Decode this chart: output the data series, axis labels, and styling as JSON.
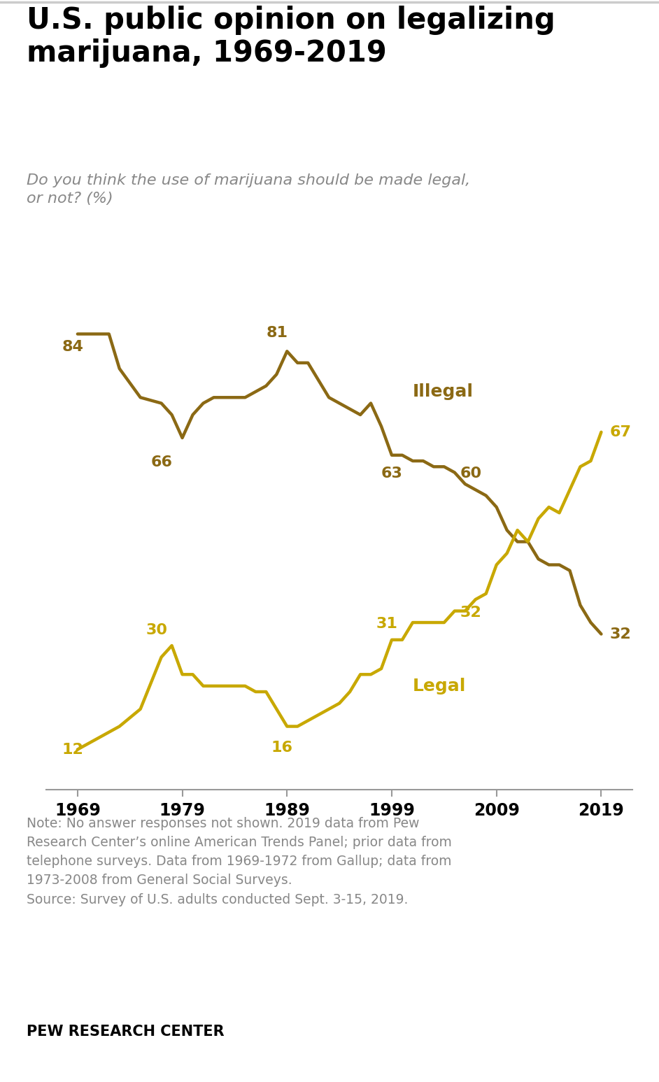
{
  "title": "U.S. public opinion on legalizing\nmarijuana, 1969-2019",
  "subtitle": "Do you think the use of marijuana should be made legal,\nor not? (%)",
  "illegal_data": [
    [
      1969,
      84
    ],
    [
      1972,
      84
    ],
    [
      1973,
      78
    ],
    [
      1975,
      73
    ],
    [
      1977,
      72
    ],
    [
      1978,
      70
    ],
    [
      1979,
      66
    ],
    [
      1980,
      70
    ],
    [
      1981,
      72
    ],
    [
      1982,
      73
    ],
    [
      1983,
      73
    ],
    [
      1984,
      73
    ],
    [
      1985,
      73
    ],
    [
      1986,
      74
    ],
    [
      1987,
      75
    ],
    [
      1988,
      77
    ],
    [
      1989,
      81
    ],
    [
      1990,
      79
    ],
    [
      1991,
      79
    ],
    [
      1993,
      73
    ],
    [
      1994,
      72
    ],
    [
      1995,
      71
    ],
    [
      1996,
      70
    ],
    [
      1997,
      72
    ],
    [
      1998,
      68
    ],
    [
      1999,
      63
    ],
    [
      2000,
      63
    ],
    [
      2001,
      62
    ],
    [
      2002,
      62
    ],
    [
      2003,
      61
    ],
    [
      2004,
      61
    ],
    [
      2005,
      60
    ],
    [
      2006,
      58
    ],
    [
      2007,
      57
    ],
    [
      2008,
      56
    ],
    [
      2009,
      54
    ],
    [
      2010,
      50
    ],
    [
      2011,
      48
    ],
    [
      2012,
      48
    ],
    [
      2013,
      45
    ],
    [
      2014,
      44
    ],
    [
      2015,
      44
    ],
    [
      2016,
      43
    ],
    [
      2017,
      37
    ],
    [
      2018,
      34
    ],
    [
      2019,
      32
    ]
  ],
  "legal_data": [
    [
      1969,
      12
    ],
    [
      1972,
      15
    ],
    [
      1973,
      16
    ],
    [
      1975,
      19
    ],
    [
      1977,
      28
    ],
    [
      1978,
      30
    ],
    [
      1979,
      25
    ],
    [
      1980,
      25
    ],
    [
      1981,
      23
    ],
    [
      1982,
      23
    ],
    [
      1983,
      23
    ],
    [
      1984,
      23
    ],
    [
      1985,
      23
    ],
    [
      1986,
      22
    ],
    [
      1987,
      22
    ],
    [
      1988,
      19
    ],
    [
      1989,
      16
    ],
    [
      1990,
      16
    ],
    [
      1991,
      17
    ],
    [
      1993,
      19
    ],
    [
      1994,
      20
    ],
    [
      1995,
      22
    ],
    [
      1996,
      25
    ],
    [
      1997,
      25
    ],
    [
      1998,
      26
    ],
    [
      1999,
      31
    ],
    [
      2000,
      31
    ],
    [
      2001,
      34
    ],
    [
      2002,
      34
    ],
    [
      2003,
      34
    ],
    [
      2004,
      34
    ],
    [
      2005,
      36
    ],
    [
      2006,
      36
    ],
    [
      2007,
      38
    ],
    [
      2008,
      39
    ],
    [
      2009,
      44
    ],
    [
      2010,
      46
    ],
    [
      2011,
      50
    ],
    [
      2012,
      48
    ],
    [
      2013,
      52
    ],
    [
      2014,
      54
    ],
    [
      2015,
      53
    ],
    [
      2016,
      57
    ],
    [
      2017,
      61
    ],
    [
      2018,
      62
    ],
    [
      2019,
      67
    ]
  ],
  "illegal_color": "#8B6914",
  "legal_color": "#C8A800",
  "illegal_label": "Illegal",
  "legal_label": "Legal",
  "note_text": "Note: No answer responses not shown. 2019 data from Pew\nResearch Center’s online American Trends Panel; prior data from\ntelephone surveys. Data from 1969-1972 from Gallup; data from\n1973-2008 from General Social Surveys.\nSource: Survey of U.S. adults conducted Sept. 3-15, 2019.",
  "source_label": "PEW RESEARCH CENTER",
  "xlim": [
    1966,
    2022
  ],
  "ylim": [
    5,
    95
  ],
  "xticks": [
    1969,
    1979,
    1989,
    1999,
    2009,
    2019
  ],
  "background_color": "#FFFFFF",
  "line_width": 3.2
}
